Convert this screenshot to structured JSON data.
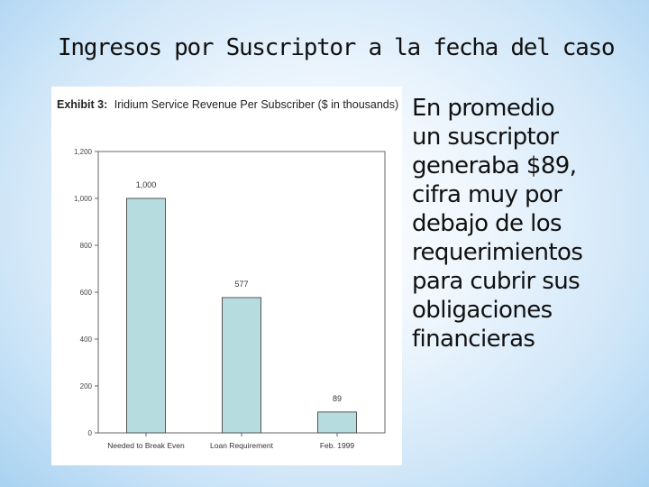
{
  "slide": {
    "title": "Ingresos por Suscriptor a la fecha del caso",
    "body_lines": [
      "En promedio",
      "un suscriptor",
      "generaba  $89,",
      "cifra muy por",
      "debajo de los",
      "requerimientos",
      "para cubrir sus",
      "obligaciones",
      "financieras"
    ]
  },
  "chart_data": {
    "type": "bar",
    "title_prefix": "Exhibit 3:",
    "title": "Iridium Service Revenue Per Subscriber ($ in thousands)",
    "categories": [
      "Needed to Break Even",
      "Loan Requirement",
      "Feb. 1999"
    ],
    "values": [
      1000,
      577,
      89
    ],
    "value_labels": [
      "1,000",
      "577",
      "89"
    ],
    "yticks": [
      0,
      200,
      400,
      600,
      800,
      1000,
      1200
    ],
    "ytick_labels": [
      "0",
      "200",
      "400",
      "600",
      "800",
      "1,000",
      "1,200"
    ],
    "ylim": [
      0,
      1200
    ],
    "xlabel": "",
    "ylabel": "",
    "grid": false,
    "bar_color": "#b7dce0",
    "bar_stroke": "#555555"
  }
}
